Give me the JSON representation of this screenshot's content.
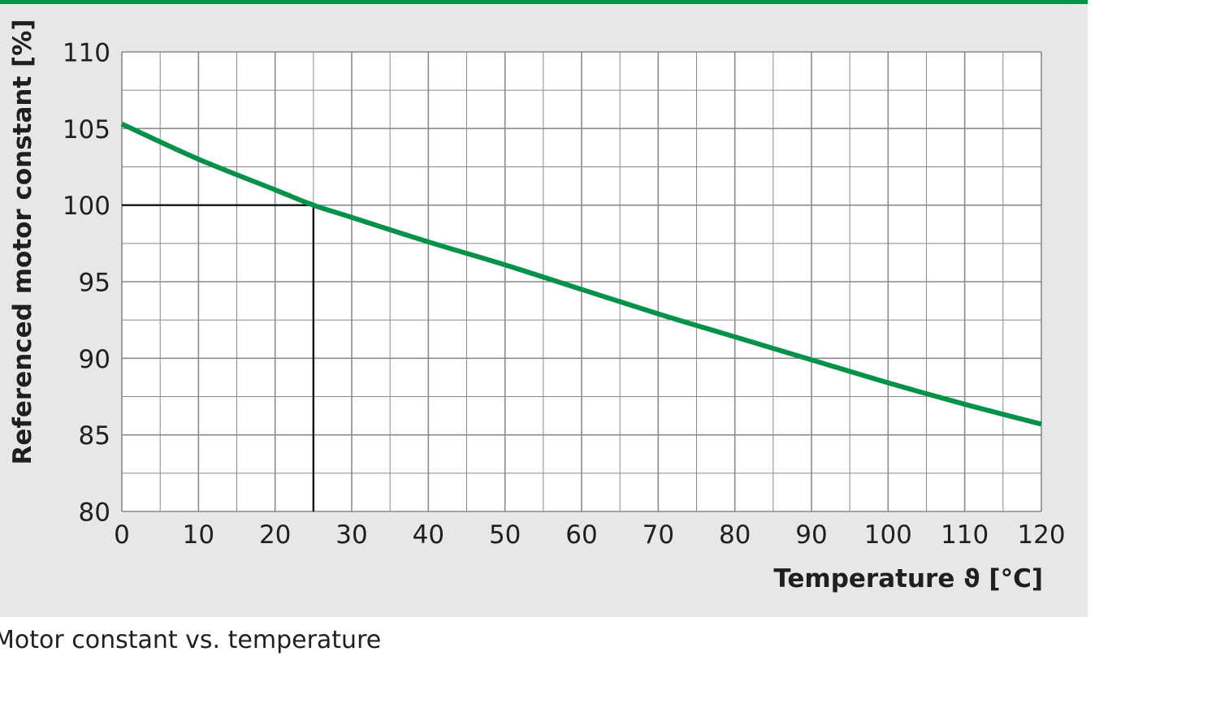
{
  "caption": "Motor constant vs. temperature",
  "colors": {
    "accent": "#009348",
    "panel": "#e7e7e9",
    "plot_bg": "#ffffff",
    "grid": "#8a8a8a",
    "text": "#1f1f1f"
  },
  "chart_data": {
    "type": "line",
    "title": "",
    "xlabel": "Temperature ϑ [°C]",
    "ylabel": "Referenced motor constant [%]",
    "xlim": [
      0,
      120
    ],
    "ylim": [
      80,
      110
    ],
    "x_ticks": [
      0,
      10,
      20,
      30,
      40,
      50,
      60,
      70,
      80,
      90,
      100,
      110,
      120
    ],
    "y_ticks": [
      80,
      85,
      90,
      95,
      100,
      105,
      110
    ],
    "x_minor_step": 5,
    "y_minor_step": 2.5,
    "grid": true,
    "legend": "none",
    "series": [
      {
        "color": "#009348",
        "x": [
          0,
          10,
          20,
          25,
          30,
          40,
          50,
          60,
          70,
          80,
          90,
          100,
          110,
          120
        ],
        "y": [
          105.3,
          103.0,
          101.0,
          100.0,
          99.2,
          97.6,
          96.1,
          94.5,
          92.9,
          91.4,
          89.9,
          88.4,
          87.0,
          85.7
        ]
      }
    ],
    "reference_point": {
      "x": 25,
      "y": 100
    }
  }
}
